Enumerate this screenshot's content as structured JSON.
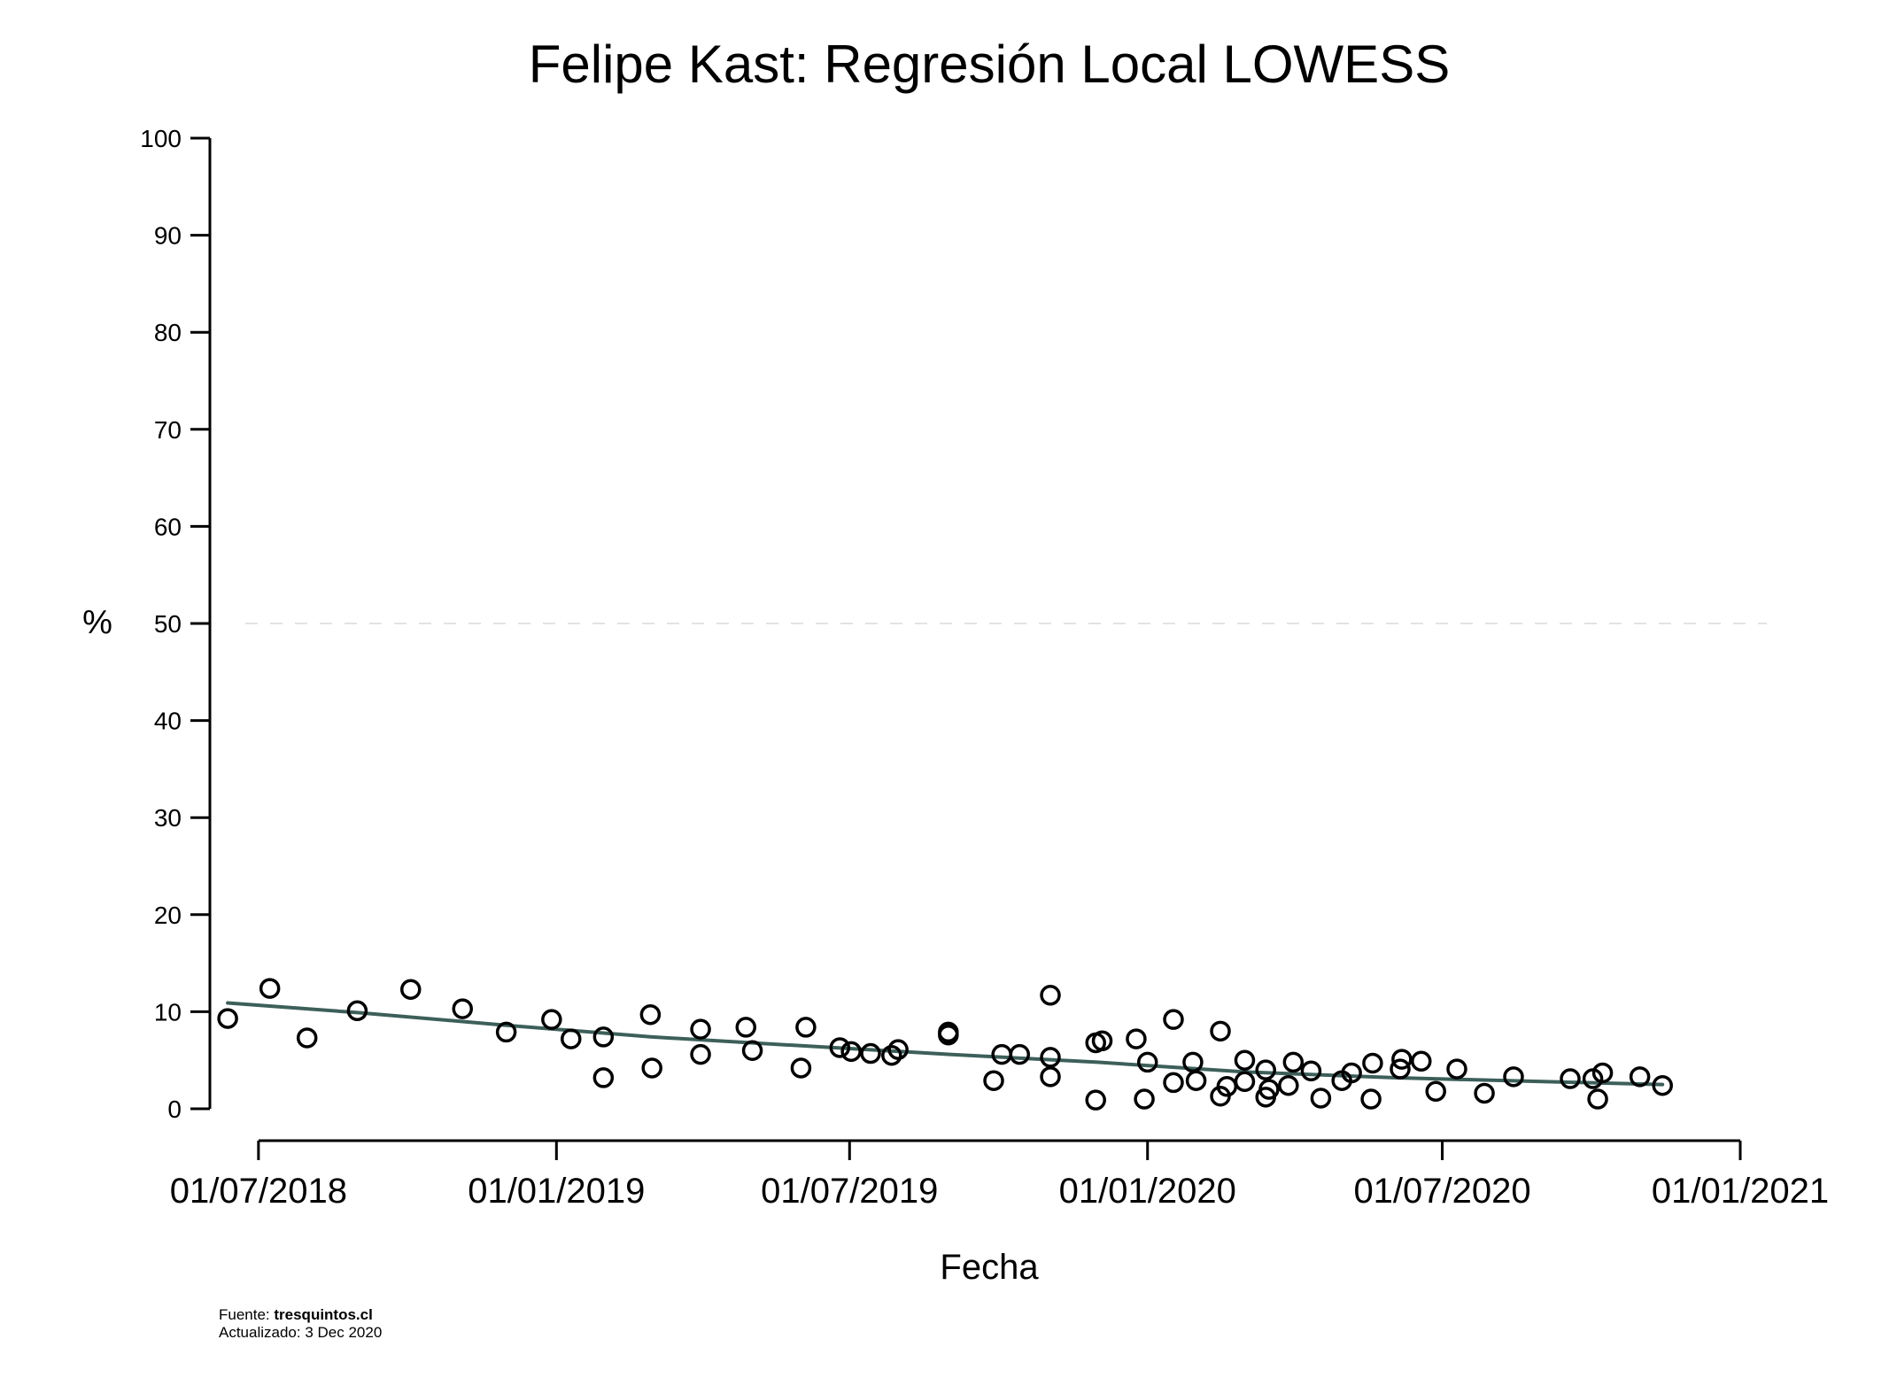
{
  "chart_data": {
    "type": "scatter",
    "title": "Felipe Kast: Regresión Local LOWESS",
    "xlabel": "Fecha",
    "ylabel": "%",
    "y_ticks": [
      "0",
      "10",
      "20",
      "30",
      "40",
      "50",
      "60",
      "70",
      "80",
      "90",
      "100"
    ],
    "ylim": [
      0,
      100
    ],
    "x_ticks": [
      "01/07/2018",
      "01/01/2019",
      "01/07/2019",
      "01/01/2020",
      "01/07/2020",
      "01/01/2021"
    ],
    "xlim": [
      "2018-06-01",
      "2021-01-01"
    ],
    "reference_line": {
      "y": 50,
      "style": "dashed"
    },
    "colors": {
      "points": "#000000",
      "lowess": "#3d5f5a",
      "reference": "#e3e3e3"
    },
    "points": [
      {
        "x": "2018-06-12",
        "y": 9.3
      },
      {
        "x": "2018-07-08",
        "y": 12.4
      },
      {
        "x": "2018-07-31",
        "y": 7.3
      },
      {
        "x": "2018-08-31",
        "y": 10.1
      },
      {
        "x": "2018-10-03",
        "y": 12.3
      },
      {
        "x": "2018-11-04",
        "y": 10.3
      },
      {
        "x": "2018-12-01",
        "y": 7.9
      },
      {
        "x": "2018-12-29",
        "y": 9.2
      },
      {
        "x": "2019-01-10",
        "y": 7.2
      },
      {
        "x": "2019-01-30",
        "y": 7.4
      },
      {
        "x": "2019-01-30",
        "y": 3.2
      },
      {
        "x": "2019-02-28",
        "y": 9.7
      },
      {
        "x": "2019-03-01",
        "y": 4.2
      },
      {
        "x": "2019-03-31",
        "y": 8.2
      },
      {
        "x": "2019-03-31",
        "y": 5.6
      },
      {
        "x": "2019-04-28",
        "y": 8.4
      },
      {
        "x": "2019-05-02",
        "y": 6.0
      },
      {
        "x": "2019-06-01",
        "y": 4.2
      },
      {
        "x": "2019-06-04",
        "y": 8.4
      },
      {
        "x": "2019-06-25",
        "y": 6.3
      },
      {
        "x": "2019-07-02",
        "y": 5.9
      },
      {
        "x": "2019-07-14",
        "y": 5.7
      },
      {
        "x": "2019-07-27",
        "y": 5.5
      },
      {
        "x": "2019-07-31",
        "y": 6.1
      },
      {
        "x": "2019-08-31",
        "y": 7.6
      },
      {
        "x": "2019-08-31",
        "y": 7.9
      },
      {
        "x": "2019-09-28",
        "y": 2.9
      },
      {
        "x": "2019-10-03",
        "y": 5.6
      },
      {
        "x": "2019-10-14",
        "y": 5.6
      },
      {
        "x": "2019-11-02",
        "y": 11.7
      },
      {
        "x": "2019-11-02",
        "y": 5.3
      },
      {
        "x": "2019-11-02",
        "y": 3.3
      },
      {
        "x": "2019-11-30",
        "y": 0.9
      },
      {
        "x": "2019-11-30",
        "y": 6.8
      },
      {
        "x": "2019-12-04",
        "y": 7.0
      },
      {
        "x": "2019-12-25",
        "y": 7.2
      },
      {
        "x": "2019-12-30",
        "y": 1.0
      },
      {
        "x": "2020-01-01",
        "y": 4.8
      },
      {
        "x": "2020-01-17",
        "y": 9.2
      },
      {
        "x": "2020-01-17",
        "y": 2.7
      },
      {
        "x": "2020-01-29",
        "y": 4.8
      },
      {
        "x": "2020-01-31",
        "y": 2.9
      },
      {
        "x": "2020-02-15",
        "y": 8.0
      },
      {
        "x": "2020-02-15",
        "y": 1.3
      },
      {
        "x": "2020-02-19",
        "y": 2.3
      },
      {
        "x": "2020-03-01",
        "y": 5.0
      },
      {
        "x": "2020-03-01",
        "y": 2.8
      },
      {
        "x": "2020-03-14",
        "y": 4.0
      },
      {
        "x": "2020-03-14",
        "y": 1.2
      },
      {
        "x": "2020-03-16",
        "y": 2.0
      },
      {
        "x": "2020-03-28",
        "y": 2.4
      },
      {
        "x": "2020-03-31",
        "y": 4.8
      },
      {
        "x": "2020-04-11",
        "y": 3.9
      },
      {
        "x": "2020-04-17",
        "y": 1.1
      },
      {
        "x": "2020-04-30",
        "y": 2.9
      },
      {
        "x": "2020-05-06",
        "y": 3.7
      },
      {
        "x": "2020-05-18",
        "y": 1.0
      },
      {
        "x": "2020-05-19",
        "y": 4.7
      },
      {
        "x": "2020-06-05",
        "y": 4.1
      },
      {
        "x": "2020-06-06",
        "y": 5.1
      },
      {
        "x": "2020-06-18",
        "y": 4.9
      },
      {
        "x": "2020-06-27",
        "y": 1.8
      },
      {
        "x": "2020-07-10",
        "y": 4.1
      },
      {
        "x": "2020-07-27",
        "y": 1.6
      },
      {
        "x": "2020-08-14",
        "y": 3.3
      },
      {
        "x": "2020-09-18",
        "y": 3.1
      },
      {
        "x": "2020-10-02",
        "y": 3.1
      },
      {
        "x": "2020-10-05",
        "y": 1.0
      },
      {
        "x": "2020-10-08",
        "y": 3.7
      },
      {
        "x": "2020-10-31",
        "y": 3.3
      },
      {
        "x": "2020-11-14",
        "y": 2.4
      }
    ],
    "lowess": [
      {
        "x": "2018-06-12",
        "y": 10.9
      },
      {
        "x": "2018-09-01",
        "y": 9.9
      },
      {
        "x": "2018-12-01",
        "y": 8.6
      },
      {
        "x": "2019-03-01",
        "y": 7.4
      },
      {
        "x": "2019-06-01",
        "y": 6.5
      },
      {
        "x": "2019-09-01",
        "y": 5.6
      },
      {
        "x": "2019-12-01",
        "y": 4.8
      },
      {
        "x": "2020-03-01",
        "y": 3.8
      },
      {
        "x": "2020-06-01",
        "y": 3.2
      },
      {
        "x": "2020-09-01",
        "y": 2.8
      },
      {
        "x": "2020-11-14",
        "y": 2.5
      }
    ]
  },
  "footer": {
    "source_label": "Fuente: ",
    "source_value": "tresquintos.cl",
    "updated": "Actualizado: 3 Dec 2020"
  }
}
